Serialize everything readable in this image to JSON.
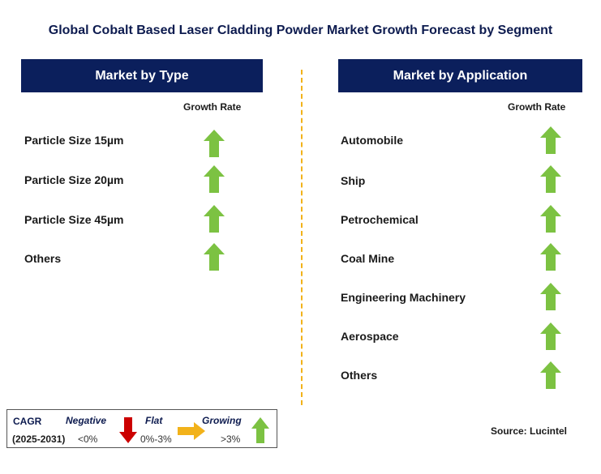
{
  "title": "Global Cobalt Based Laser Cladding Powder Market Growth Forecast by Segment",
  "left_panel": {
    "header": "Market by Type",
    "growth_label": "Growth Rate",
    "items": [
      {
        "label": "Particle Size 15µm",
        "trend": "growing"
      },
      {
        "label": "Particle Size 20µm",
        "trend": "growing"
      },
      {
        "label": "Particle Size 45µm",
        "trend": "growing"
      },
      {
        "label": "Others",
        "trend": "growing"
      }
    ]
  },
  "right_panel": {
    "header": "Market by Application",
    "growth_label": "Growth Rate",
    "items": [
      {
        "label": "Automobile",
        "trend": "growing"
      },
      {
        "label": "Ship",
        "trend": "growing"
      },
      {
        "label": "Petrochemical",
        "trend": "growing"
      },
      {
        "label": "Coal Mine",
        "trend": "growing"
      },
      {
        "label": "Engineering Machinery",
        "trend": "growing"
      },
      {
        "label": "Aerospace",
        "trend": "growing"
      },
      {
        "label": "Others",
        "trend": "growing"
      }
    ]
  },
  "legend": {
    "cagr": "CAGR",
    "period": "(2025-2031)",
    "negative": {
      "label": "Negative",
      "value": "<0%",
      "icon": "down-arrow-icon",
      "color": "#cc0000"
    },
    "flat": {
      "label": "Flat",
      "value": "0%-3%",
      "icon": "right-arrow-icon",
      "color": "#f2b21a"
    },
    "growing": {
      "label": "Growing",
      "value": ">3%",
      "icon": "up-arrow-icon",
      "color": "#7cc242"
    }
  },
  "source": "Source: Lucintel",
  "colors": {
    "header_bg": "#0b1f5c",
    "divider": "#f2b21a",
    "up_arrow": "#7cc242"
  }
}
